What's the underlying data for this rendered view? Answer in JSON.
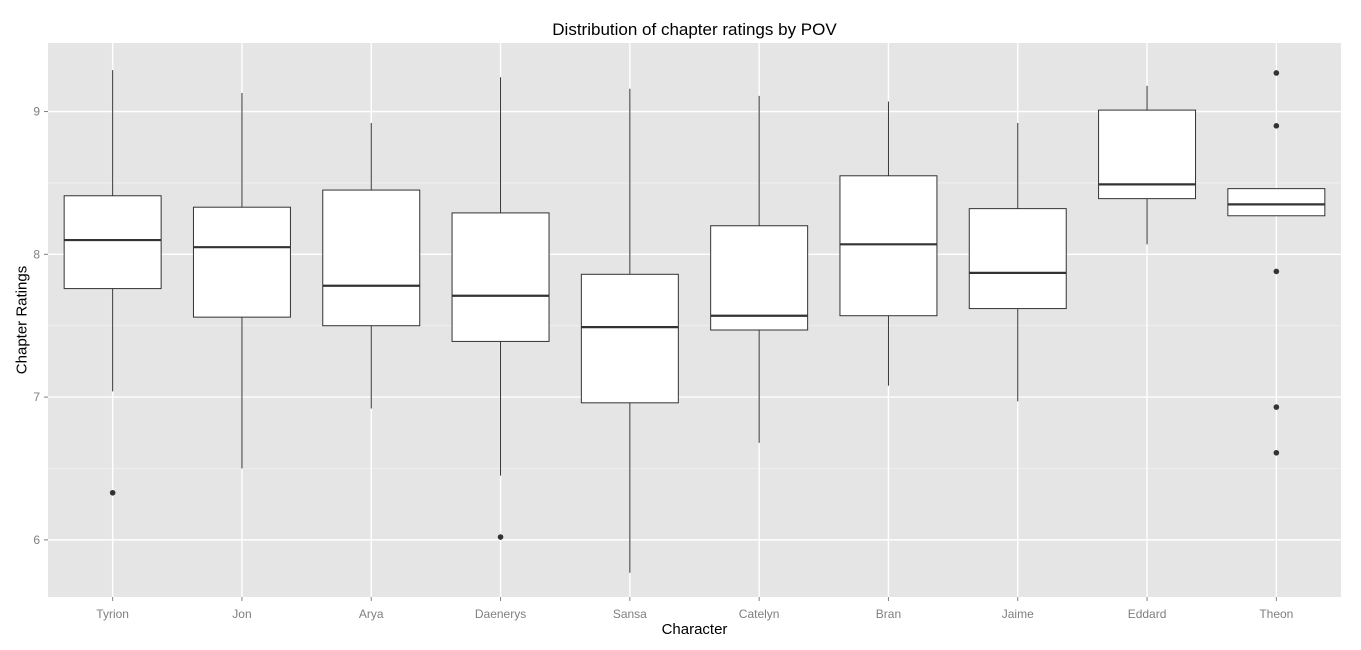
{
  "chart_data": {
    "type": "boxplot",
    "title": "Distribution of chapter ratings by POV",
    "xlabel": "Character",
    "ylabel": "Chapter Ratings",
    "ylim": [
      5.6,
      9.48
    ],
    "yticks": [
      6,
      7,
      8,
      9
    ],
    "grid": true,
    "legend": "none",
    "colors": {
      "panel": "#e5e5e5",
      "grid_major": "#ffffff",
      "grid_minor": "#f2f2f2",
      "box_fill": "#ffffff",
      "box_stroke": "#333333",
      "tick_label": "#7f7f7f"
    },
    "categories": [
      "Tyrion",
      "Jon",
      "Arya",
      "Daenerys",
      "Sansa",
      "Catelyn",
      "Bran",
      "Jaime",
      "Eddard",
      "Theon"
    ],
    "boxes": [
      {
        "name": "Tyrion",
        "lower_whisker": 7.04,
        "q1": 7.76,
        "median": 8.1,
        "q3": 8.41,
        "upper_whisker": 9.29,
        "outliers": [
          6.33
        ]
      },
      {
        "name": "Jon",
        "lower_whisker": 6.5,
        "q1": 7.56,
        "median": 8.05,
        "q3": 8.33,
        "upper_whisker": 9.13,
        "outliers": []
      },
      {
        "name": "Arya",
        "lower_whisker": 6.92,
        "q1": 7.5,
        "median": 7.78,
        "q3": 8.45,
        "upper_whisker": 8.92,
        "outliers": []
      },
      {
        "name": "Daenerys",
        "lower_whisker": 6.45,
        "q1": 7.39,
        "median": 7.71,
        "q3": 8.29,
        "upper_whisker": 9.24,
        "outliers": [
          6.02
        ]
      },
      {
        "name": "Sansa",
        "lower_whisker": 5.77,
        "q1": 6.96,
        "median": 7.49,
        "q3": 7.86,
        "upper_whisker": 9.16,
        "outliers": []
      },
      {
        "name": "Catelyn",
        "lower_whisker": 6.68,
        "q1": 7.47,
        "median": 7.57,
        "q3": 8.2,
        "upper_whisker": 9.11,
        "outliers": []
      },
      {
        "name": "Bran",
        "lower_whisker": 7.08,
        "q1": 7.57,
        "median": 8.07,
        "q3": 8.55,
        "upper_whisker": 9.07,
        "outliers": []
      },
      {
        "name": "Jaime",
        "lower_whisker": 6.97,
        "q1": 7.62,
        "median": 7.87,
        "q3": 8.32,
        "upper_whisker": 8.92,
        "outliers": []
      },
      {
        "name": "Eddard",
        "lower_whisker": 8.07,
        "q1": 8.39,
        "median": 8.49,
        "q3": 9.01,
        "upper_whisker": 9.18,
        "outliers": []
      },
      {
        "name": "Theon",
        "lower_whisker": 8.27,
        "q1": 8.27,
        "median": 8.35,
        "q3": 8.46,
        "upper_whisker": 8.46,
        "outliers": [
          9.27,
          8.9,
          7.88,
          6.93,
          6.61
        ]
      }
    ]
  }
}
